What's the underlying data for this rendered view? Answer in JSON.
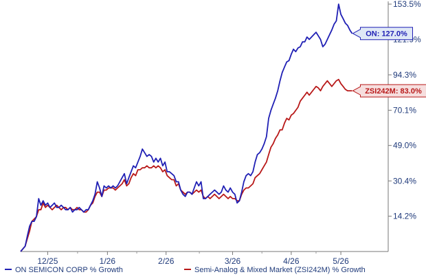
{
  "chart_data": {
    "type": "line",
    "title": "",
    "xlabel": "",
    "ylabel": "",
    "ylim": [
      0,
      153.5
    ],
    "y_ticks": [
      "153.5%",
      "121.9%",
      "94.3%",
      "70.1%",
      "49.0%",
      "30.4%",
      "14.2%"
    ],
    "y_tick_values": [
      153.5,
      121.9,
      94.3,
      70.1,
      49.0,
      30.4,
      14.2
    ],
    "y_scale": "log(1+y)",
    "x_ticks": [
      "12/25",
      "1/26",
      "2/26",
      "3/26",
      "4/26",
      "5/26"
    ],
    "x_tick_positions": [
      12,
      38.5,
      64.5,
      94,
      120,
      142
    ],
    "xlim": [
      0,
      163
    ],
    "grid": false,
    "legend": "bottom",
    "series": [
      {
        "name": "ON SEMICON CORP % Growth",
        "color": "#1f1fb4",
        "callout": "ON: 127.0%",
        "points": [
          [
            0,
            0
          ],
          [
            2,
            2
          ],
          [
            3,
            6
          ],
          [
            4,
            10
          ],
          [
            5,
            12
          ],
          [
            6,
            12
          ],
          [
            7,
            14
          ],
          [
            8,
            22
          ],
          [
            9,
            19
          ],
          [
            10,
            21
          ],
          [
            11,
            19
          ],
          [
            12,
            20
          ],
          [
            13,
            18
          ],
          [
            14,
            19
          ],
          [
            15,
            20
          ],
          [
            16,
            18
          ],
          [
            17,
            18
          ],
          [
            18,
            19
          ],
          [
            19,
            18
          ],
          [
            20,
            17
          ],
          [
            21,
            17
          ],
          [
            22,
            18
          ],
          [
            23,
            16
          ],
          [
            24,
            17
          ],
          [
            25,
            17
          ],
          [
            26,
            18
          ],
          [
            27,
            17
          ],
          [
            28,
            16
          ],
          [
            29,
            17
          ],
          [
            30,
            17
          ],
          [
            31,
            19
          ],
          [
            32,
            21
          ],
          [
            33,
            24
          ],
          [
            34,
            30
          ],
          [
            35,
            27
          ],
          [
            36,
            23
          ],
          [
            37,
            28
          ],
          [
            38,
            27
          ],
          [
            39,
            28
          ],
          [
            40,
            27
          ],
          [
            41,
            28
          ],
          [
            42,
            27
          ],
          [
            43,
            28
          ],
          [
            44,
            30
          ],
          [
            45,
            32
          ],
          [
            46,
            34
          ],
          [
            47,
            29
          ],
          [
            48,
            32
          ],
          [
            49,
            35
          ],
          [
            50,
            38
          ],
          [
            51,
            37
          ],
          [
            52,
            40
          ],
          [
            53,
            43
          ],
          [
            54,
            47
          ],
          [
            55,
            45
          ],
          [
            56,
            43
          ],
          [
            57,
            44
          ],
          [
            58,
            43
          ],
          [
            59,
            40
          ],
          [
            60,
            42
          ],
          [
            61,
            40
          ],
          [
            62,
            42
          ],
          [
            63,
            38
          ],
          [
            64,
            40
          ],
          [
            65,
            35
          ],
          [
            66,
            35
          ],
          [
            67,
            34
          ],
          [
            68,
            33
          ],
          [
            69,
            30
          ],
          [
            70,
            30
          ],
          [
            71,
            26
          ],
          [
            72,
            24
          ],
          [
            73,
            23
          ],
          [
            74,
            25
          ],
          [
            75,
            25
          ],
          [
            76,
            24
          ],
          [
            77,
            27
          ],
          [
            78,
            30
          ],
          [
            79,
            28
          ],
          [
            80,
            30
          ],
          [
            81,
            22
          ],
          [
            82,
            22
          ],
          [
            83,
            23
          ],
          [
            84,
            24
          ],
          [
            85,
            25
          ],
          [
            86,
            26
          ],
          [
            87,
            25
          ],
          [
            88,
            24
          ],
          [
            89,
            25
          ],
          [
            90,
            28
          ],
          [
            91,
            26
          ],
          [
            92,
            25
          ],
          [
            93,
            27
          ],
          [
            94,
            25
          ],
          [
            95,
            24
          ],
          [
            96,
            20
          ],
          [
            97,
            21
          ],
          [
            98,
            25
          ],
          [
            99,
            30
          ],
          [
            100,
            33
          ],
          [
            101,
            34
          ],
          [
            102,
            33
          ],
          [
            103,
            35
          ],
          [
            104,
            40
          ],
          [
            105,
            44
          ],
          [
            106,
            45
          ],
          [
            107,
            47
          ],
          [
            108,
            50
          ],
          [
            109,
            54
          ],
          [
            110,
            65
          ],
          [
            111,
            70
          ],
          [
            112,
            74
          ],
          [
            113,
            78
          ],
          [
            114,
            83
          ],
          [
            115,
            90
          ],
          [
            116,
            96
          ],
          [
            117,
            100
          ],
          [
            118,
            104
          ],
          [
            119,
            105
          ],
          [
            120,
            110
          ],
          [
            121,
            114
          ],
          [
            122,
            112
          ],
          [
            123,
            115
          ],
          [
            124,
            116
          ],
          [
            125,
            120
          ],
          [
            126,
            120
          ],
          [
            127,
            124
          ],
          [
            128,
            122
          ],
          [
            129,
            124
          ],
          [
            130,
            126
          ],
          [
            131,
            128
          ],
          [
            132,
            125
          ],
          [
            133,
            122
          ],
          [
            134,
            116
          ],
          [
            135,
            118
          ],
          [
            136,
            122
          ],
          [
            137,
            126
          ],
          [
            138,
            130
          ],
          [
            139,
            135
          ],
          [
            140,
            138
          ],
          [
            141,
            153.5
          ],
          [
            142,
            144
          ],
          [
            143,
            140
          ],
          [
            144,
            136
          ],
          [
            145,
            134
          ],
          [
            146,
            130
          ],
          [
            147,
            127
          ]
        ]
      },
      {
        "name": "Semi-Analog & Mixed Market (ZSI242M) % Growth",
        "color": "#b81818",
        "callout": "ZSI242M: 83.0%",
        "points": [
          [
            0,
            0
          ],
          [
            2,
            2
          ],
          [
            3,
            5
          ],
          [
            4,
            8
          ],
          [
            5,
            12
          ],
          [
            6,
            13
          ],
          [
            7,
            14
          ],
          [
            8,
            17
          ],
          [
            9,
            17
          ],
          [
            10,
            20
          ],
          [
            11,
            18
          ],
          [
            12,
            19
          ],
          [
            13,
            18
          ],
          [
            14,
            17
          ],
          [
            15,
            18
          ],
          [
            16,
            19
          ],
          [
            17,
            18
          ],
          [
            18,
            17
          ],
          [
            19,
            18
          ],
          [
            20,
            18
          ],
          [
            21,
            17
          ],
          [
            22,
            18
          ],
          [
            23,
            17
          ],
          [
            24,
            17
          ],
          [
            25,
            18
          ],
          [
            26,
            17
          ],
          [
            27,
            17
          ],
          [
            28,
            16
          ],
          [
            29,
            16
          ],
          [
            30,
            17
          ],
          [
            31,
            19
          ],
          [
            32,
            20
          ],
          [
            33,
            23
          ],
          [
            34,
            25
          ],
          [
            35,
            25
          ],
          [
            36,
            23
          ],
          [
            37,
            26
          ],
          [
            38,
            26
          ],
          [
            39,
            27
          ],
          [
            40,
            27
          ],
          [
            41,
            27
          ],
          [
            42,
            26
          ],
          [
            43,
            27
          ],
          [
            44,
            28
          ],
          [
            45,
            29
          ],
          [
            46,
            31
          ],
          [
            47,
            28
          ],
          [
            48,
            29
          ],
          [
            49,
            32
          ],
          [
            50,
            34
          ],
          [
            51,
            33
          ],
          [
            52,
            36
          ],
          [
            53,
            36
          ],
          [
            54,
            37
          ],
          [
            55,
            37
          ],
          [
            56,
            38
          ],
          [
            57,
            37
          ],
          [
            58,
            37
          ],
          [
            59,
            38
          ],
          [
            60,
            37
          ],
          [
            61,
            38
          ],
          [
            62,
            37
          ],
          [
            63,
            35
          ],
          [
            64,
            36
          ],
          [
            65,
            33
          ],
          [
            66,
            32
          ],
          [
            67,
            31
          ],
          [
            68,
            31
          ],
          [
            69,
            28
          ],
          [
            70,
            29
          ],
          [
            71,
            26
          ],
          [
            72,
            25
          ],
          [
            73,
            24
          ],
          [
            74,
            25
          ],
          [
            75,
            25
          ],
          [
            76,
            24
          ],
          [
            77,
            25
          ],
          [
            78,
            26
          ],
          [
            79,
            25
          ],
          [
            80,
            26
          ],
          [
            81,
            23
          ],
          [
            82,
            22
          ],
          [
            83,
            23
          ],
          [
            84,
            22
          ],
          [
            85,
            23
          ],
          [
            86,
            24
          ],
          [
            87,
            23
          ],
          [
            88,
            22
          ],
          [
            89,
            23
          ],
          [
            90,
            24
          ],
          [
            91,
            23
          ],
          [
            92,
            22
          ],
          [
            93,
            23
          ],
          [
            94,
            22
          ],
          [
            95,
            22
          ],
          [
            96,
            21
          ],
          [
            97,
            21
          ],
          [
            98,
            24
          ],
          [
            99,
            26
          ],
          [
            100,
            27
          ],
          [
            101,
            27
          ],
          [
            102,
            28
          ],
          [
            103,
            29
          ],
          [
            104,
            32
          ],
          [
            105,
            33
          ],
          [
            106,
            34
          ],
          [
            107,
            36
          ],
          [
            108,
            38
          ],
          [
            109,
            40
          ],
          [
            110,
            44
          ],
          [
            111,
            48
          ],
          [
            112,
            50
          ],
          [
            113,
            53
          ],
          [
            114,
            55
          ],
          [
            115,
            58
          ],
          [
            116,
            58
          ],
          [
            117,
            62
          ],
          [
            118,
            65
          ],
          [
            119,
            64
          ],
          [
            120,
            67
          ],
          [
            121,
            68
          ],
          [
            122,
            70
          ],
          [
            123,
            72
          ],
          [
            124,
            76
          ],
          [
            125,
            78
          ],
          [
            126,
            80
          ],
          [
            127,
            82
          ],
          [
            128,
            80
          ],
          [
            129,
            82
          ],
          [
            130,
            84
          ],
          [
            131,
            86
          ],
          [
            132,
            85
          ],
          [
            133,
            83
          ],
          [
            134,
            86
          ],
          [
            135,
            88
          ],
          [
            136,
            90
          ],
          [
            137,
            88
          ],
          [
            138,
            86
          ],
          [
            139,
            88
          ],
          [
            140,
            90
          ],
          [
            141,
            91
          ],
          [
            142,
            88
          ],
          [
            143,
            86
          ],
          [
            144,
            84
          ],
          [
            145,
            83
          ],
          [
            146,
            83
          ],
          [
            147,
            83
          ]
        ]
      }
    ]
  }
}
